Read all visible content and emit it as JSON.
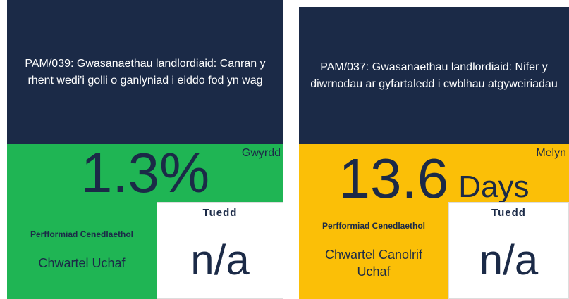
{
  "cards": [
    {
      "title": "PAM/039: Gwasanaethau landlordiaid: Canran y rhent wedi'i golli o ganlyniad i eiddo fod yn wag",
      "status": "Gwyrdd",
      "value": "1.3%",
      "national_label": "Perfformiad Cenedlaethol",
      "national_value": "Chwartel Uchaf",
      "trend_label": "Tuedd",
      "trend_value": "n/a"
    },
    {
      "title": "PAM/037: Gwasanaethau landlordiaid: Nifer y diwrnodau ar gyfartaledd i cwblhau atgyweiriadau",
      "status": "Melyn",
      "value": "13.6",
      "unit": "Days",
      "national_label": "Perfformiad Cenedlaethol",
      "national_value": "Chwartel Canolrif Uchaf",
      "trend_label": "Tuedd",
      "trend_value": "n/a"
    }
  ]
}
